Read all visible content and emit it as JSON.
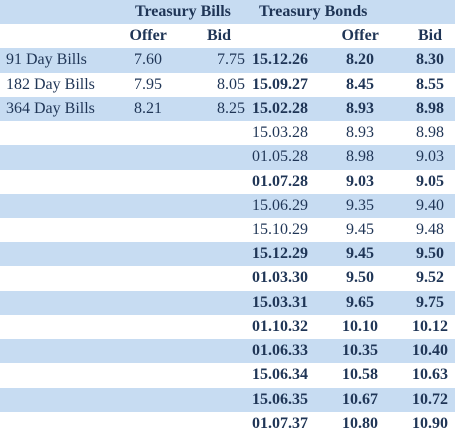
{
  "bills": {
    "title": "Treasury Bills",
    "columns": [
      "Offer",
      "Bid"
    ],
    "rows": [
      [
        "91 Day Bills",
        "7.60",
        "7.75"
      ],
      [
        "182 Day Bills",
        "7.95",
        "8.05"
      ],
      [
        "364 Day Bills",
        "8.21",
        "8.25"
      ]
    ]
  },
  "bonds": {
    "title": "Treasury Bonds",
    "columns": [
      "Offer",
      "Bid"
    ],
    "rows": [
      {
        "date": "15.12.26",
        "offer": "8.20",
        "bid": "8.30",
        "bold": true
      },
      {
        "date": "15.09.27",
        "offer": "8.45",
        "bid": "8.55",
        "bold": true
      },
      {
        "date": "15.02.28",
        "offer": "8.93",
        "bid": "8.98",
        "bold": true
      },
      {
        "date": "15.03.28",
        "offer": "8.93",
        "bid": "8.98",
        "bold": false
      },
      {
        "date": "01.05.28",
        "offer": "8.98",
        "bid": "9.03",
        "bold": false
      },
      {
        "date": "01.07.28",
        "offer": "9.03",
        "bid": "9.05",
        "bold": true
      },
      {
        "date": "15.06.29",
        "offer": "9.35",
        "bid": "9.40",
        "bold": false
      },
      {
        "date": "15.10.29",
        "offer": "9.45",
        "bid": "9.48",
        "bold": false
      },
      {
        "date": "15.12.29",
        "offer": "9.45",
        "bid": "9.50",
        "bold": true
      },
      {
        "date": "01.03.30",
        "offer": "9.50",
        "bid": "9.52",
        "bold": true
      },
      {
        "date": "15.03.31",
        "offer": "9.65",
        "bid": "9.75",
        "bold": true
      },
      {
        "date": "01.10.32",
        "offer": "10.10",
        "bid": "10.12",
        "bold": true
      },
      {
        "date": "01.06.33",
        "offer": "10.35",
        "bid": "10.40",
        "bold": true
      },
      {
        "date": "15.06.34",
        "offer": "10.58",
        "bid": "10.63",
        "bold": true
      },
      {
        "date": "15.06.35",
        "offer": "10.67",
        "bid": "10.72",
        "bold": true
      },
      {
        "date": "01.07.37",
        "offer": "10.80",
        "bid": "10.90",
        "bold": true
      }
    ]
  }
}
